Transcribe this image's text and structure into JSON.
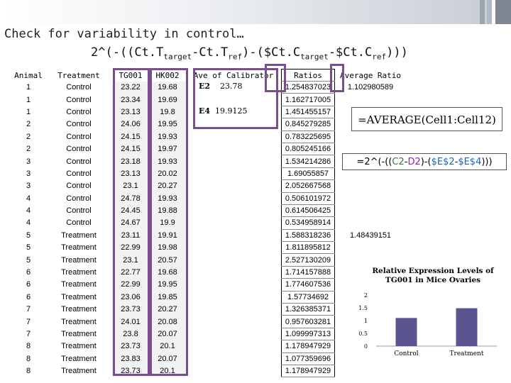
{
  "slide": {
    "title": "Check for variability in control…",
    "formula_parts": [
      "2^(-((Ct.T",
      "target",
      "-Ct.T",
      "ref",
      ")-($Ct.C",
      "target",
      "-$Ct.C",
      "ref",
      ")))"
    ]
  },
  "table": {
    "headers": [
      "Animal",
      "Treatment",
      "TG001",
      "HK002",
      "Ave of Calibrator",
      "Ratios",
      "Average Ratio"
    ],
    "rows": [
      [
        "1",
        "Control",
        "23.22",
        "19.68",
        "1.254837023"
      ],
      [
        "1",
        "Control",
        "23.34",
        "19.69",
        "1.162717005"
      ],
      [
        "1",
        "Control",
        "23.13",
        "19.8",
        "1.451455157"
      ],
      [
        "2",
        "Control",
        "24.06",
        "19.95",
        "0.845279285"
      ],
      [
        "2",
        "Control",
        "24.15",
        "19.93",
        "0.783225695"
      ],
      [
        "2",
        "Control",
        "24.15",
        "19.97",
        "0.805245166"
      ],
      [
        "3",
        "Control",
        "23.18",
        "19.93",
        "1.534214286"
      ],
      [
        "3",
        "Control",
        "23.13",
        "20.02",
        "1.69055857"
      ],
      [
        "3",
        "Control",
        "23.1",
        "20.27",
        "2.052667568"
      ],
      [
        "4",
        "Control",
        "24.78",
        "19.93",
        "0.506101972"
      ],
      [
        "4",
        "Control",
        "24.45",
        "19.88",
        "0.614506425"
      ],
      [
        "4",
        "Control",
        "24.67",
        "19.9",
        "0.534958914"
      ],
      [
        "5",
        "Treatment",
        "23.11",
        "19.91",
        "1.588318236"
      ],
      [
        "5",
        "Treatment",
        "22.99",
        "19.98",
        "1.811895812"
      ],
      [
        "5",
        "Treatment",
        "23.1",
        "20.57",
        "2.527130209"
      ],
      [
        "6",
        "Treatment",
        "22.77",
        "19.68",
        "1.714157888"
      ],
      [
        "6",
        "Treatment",
        "22.99",
        "19.95",
        "1.774607536"
      ],
      [
        "6",
        "Treatment",
        "23.06",
        "19.85",
        "1.57734692"
      ],
      [
        "7",
        "Treatment",
        "23.73",
        "20.27",
        "1.326385371"
      ],
      [
        "7",
        "Treatment",
        "24.01",
        "20.08",
        "0.957603281"
      ],
      [
        "7",
        "Treatment",
        "23.8",
        "20.07",
        "1.099997313"
      ],
      [
        "8",
        "Treatment",
        "23.73",
        "20.1",
        "1.178947929"
      ],
      [
        "8",
        "Treatment",
        "23.83",
        "20.07",
        "1.077359696"
      ],
      [
        "8",
        "Treatment",
        "23.73",
        "20.1",
        "1.178947929"
      ]
    ],
    "average_control": "1.102980589",
    "average_treatment": "1.48439151",
    "calibrator": {
      "e2_label": "E2",
      "e2_value": "23.78",
      "e4_label": "E4",
      "e4_value": "19.9125"
    }
  },
  "annotations": {
    "average_formula": "=AVERAGE(Cell1:Cell12)",
    "ratio_formula_parts": [
      "=2^(-((",
      "C2",
      "-",
      "D2",
      ")-(",
      "$E$2",
      "-",
      "$E$4",
      ")))"
    ]
  },
  "colors": {
    "highlight_box": "#7a4e8c",
    "bar": "#5a5590"
  },
  "chart_data": {
    "type": "bar",
    "title": "Relative Expression Levels of TG001 in Mice Ovaries",
    "categories": [
      "Control",
      "Treatment"
    ],
    "values": [
      1.102980589,
      1.48439151
    ],
    "ylim": [
      0,
      2
    ],
    "yticks": [
      "0",
      "0.5",
      "1",
      "1.5",
      "2"
    ],
    "grid": false
  }
}
